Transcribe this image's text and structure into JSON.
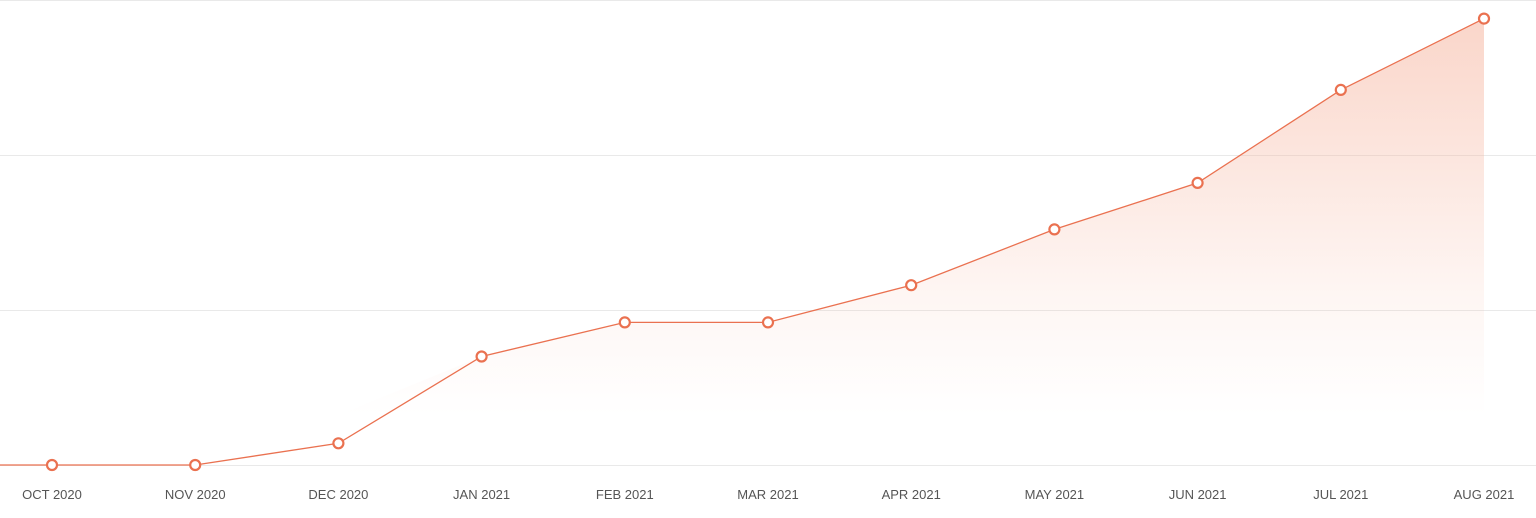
{
  "colors": {
    "line": "#ea7150",
    "area_fill": "#f6b49e",
    "grid": "#e9e9e9",
    "tick_text": "#555555",
    "background": "#ffffff"
  },
  "chart_data": {
    "type": "area",
    "title": "",
    "xlabel": "",
    "ylabel": "",
    "categories": [
      "OCT 2020",
      "NOV 2020",
      "DEC 2020",
      "JAN 2021",
      "FEB 2021",
      "MAR 2021",
      "APR 2021",
      "MAY 2021",
      "JUN 2021",
      "JUL 2021",
      "AUG 2021"
    ],
    "series": [
      {
        "values": [
          0,
          0,
          7,
          35,
          46,
          46,
          58,
          76,
          91,
          121,
          144
        ]
      }
    ],
    "ylim": [
      0,
      150
    ],
    "grid": true,
    "y_tick_labels_shown": false,
    "legend": "none",
    "markers": "hollow circles"
  }
}
